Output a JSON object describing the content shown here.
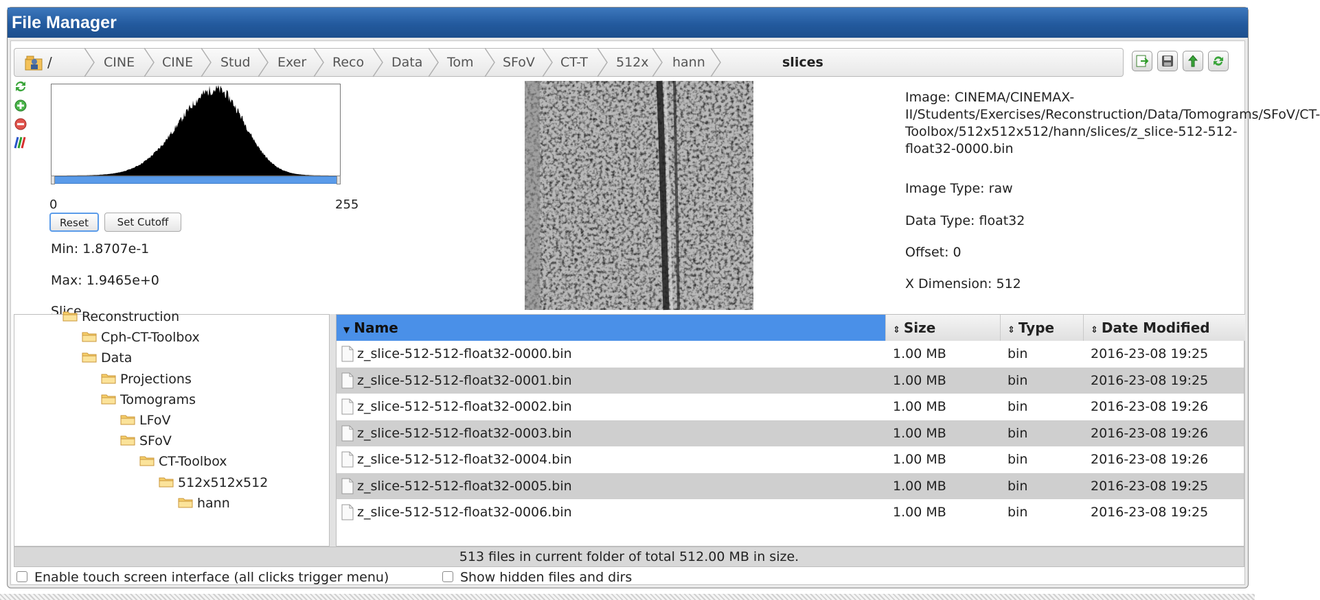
{
  "window": {
    "title": "File Manager"
  },
  "breadcrumb": {
    "root": "/",
    "items": [
      "CINE",
      "CINE",
      "Stud",
      "Exer",
      "Reco",
      "Data",
      "Tom",
      "SFoV",
      "CT-T",
      "512x",
      "hann"
    ],
    "current": "slices"
  },
  "toolbar": {
    "icons": [
      "export-icon",
      "save-disk-icon",
      "up-folder-icon",
      "refresh-icon"
    ]
  },
  "side_icons": [
    "refresh-icon",
    "zoom-in-icon",
    "zoom-out-icon",
    "colormap-icon"
  ],
  "histogram": {
    "min_label": "0",
    "max_label": "255",
    "reset_label": "Reset",
    "cutoff_label": "Set Cutoff",
    "min_text": "Min: 1.8707e-1",
    "max_text": "Max: 1.9465e+0",
    "cut_text": "Slice"
  },
  "info": {
    "image": "Image: CINEMA/CINEMAX-II/Students/Exercises/Reconstruction/Data/Tomograms/SFoV/CT-Toolbox/512x512x512/hann/slices/z_slice-512-512-float32-0000.bin",
    "image_type": "Image Type: raw",
    "data_type": "Data Type: float32",
    "offset": "Offset: 0",
    "x_dim": "X Dimension: 512"
  },
  "tree": {
    "items": [
      {
        "label": "Reconstruction",
        "depth": 1
      },
      {
        "label": "Cph-CT-Toolbox",
        "depth": 2
      },
      {
        "label": "Data",
        "depth": 2
      },
      {
        "label": "Projections",
        "depth": 3
      },
      {
        "label": "Tomograms",
        "depth": 3
      },
      {
        "label": "LFoV",
        "depth": 4
      },
      {
        "label": "SFoV",
        "depth": 4
      },
      {
        "label": "CT-Toolbox",
        "depth": 5
      },
      {
        "label": "512x512x512",
        "depth": 6
      },
      {
        "label": "hann",
        "depth": 7
      }
    ]
  },
  "table": {
    "columns": {
      "name": "Name",
      "size": "Size",
      "type": "Type",
      "date": "Date Modified"
    },
    "rows": [
      {
        "name": "z_slice-512-512-float32-0000.bin",
        "size": "1.00 MB",
        "type": "bin",
        "date": "2016-23-08 19:25"
      },
      {
        "name": "z_slice-512-512-float32-0001.bin",
        "size": "1.00 MB",
        "type": "bin",
        "date": "2016-23-08 19:25"
      },
      {
        "name": "z_slice-512-512-float32-0002.bin",
        "size": "1.00 MB",
        "type": "bin",
        "date": "2016-23-08 19:26"
      },
      {
        "name": "z_slice-512-512-float32-0003.bin",
        "size": "1.00 MB",
        "type": "bin",
        "date": "2016-23-08 19:26"
      },
      {
        "name": "z_slice-512-512-float32-0004.bin",
        "size": "1.00 MB",
        "type": "bin",
        "date": "2016-23-08 19:26"
      },
      {
        "name": "z_slice-512-512-float32-0005.bin",
        "size": "1.00 MB",
        "type": "bin",
        "date": "2016-23-08 19:25"
      },
      {
        "name": "z_slice-512-512-float32-0006.bin",
        "size": "1.00 MB",
        "type": "bin",
        "date": "2016-23-08 19:25"
      }
    ]
  },
  "status": "513 files in current folder of total 512.00 MB in size.",
  "options": {
    "touch": "Enable touch screen interface (all clicks trigger menu)",
    "hidden": "Show hidden files and dirs"
  }
}
